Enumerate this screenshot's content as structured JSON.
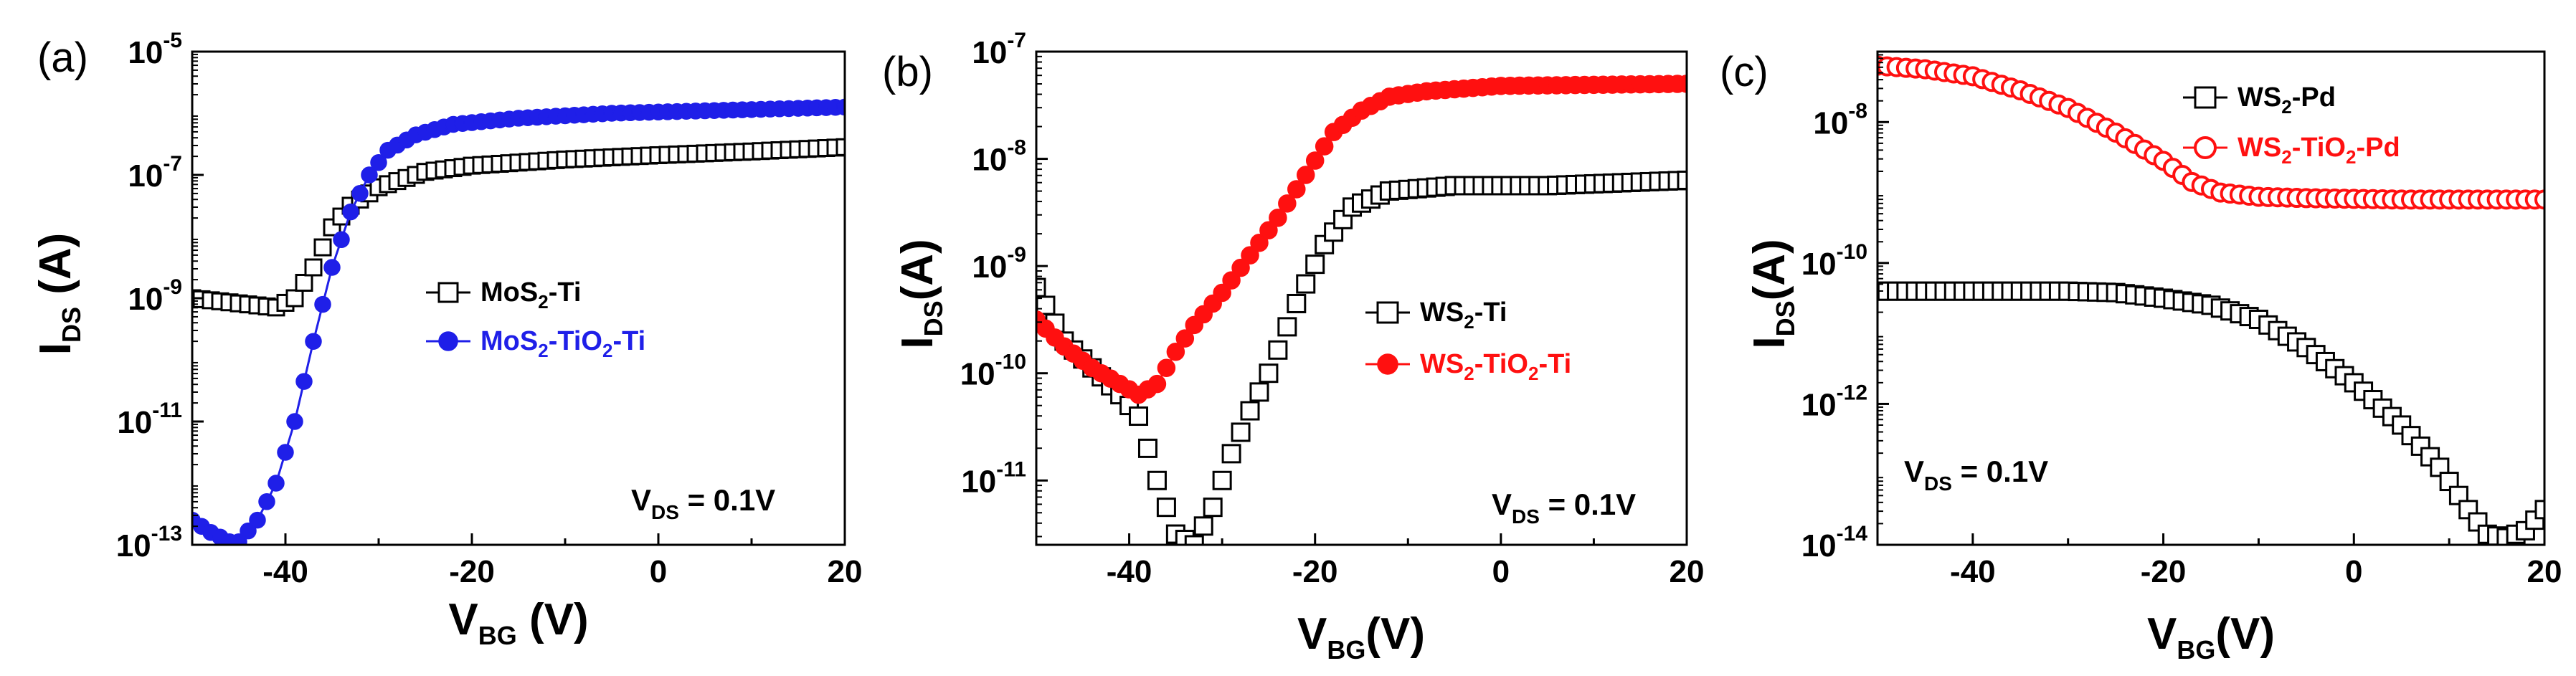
{
  "figure_title": "Transfer characteristics I_DS vs V_BG",
  "chart_data": [
    {
      "type": "scatter",
      "panel_label": "(a)",
      "xlabel": {
        "main": "V",
        "sub": "BG",
        "rest": " (V)"
      },
      "ylabel": {
        "main": "I",
        "sub": "DS",
        "rest": " (A)"
      },
      "xlim": [
        -50,
        20
      ],
      "ylim_log10": [
        -13,
        -5
      ],
      "x_ticks": [
        -40,
        -20,
        0,
        20
      ],
      "x_tick_labels": [
        "-40",
        "-20",
        "0",
        "20"
      ],
      "y_ticks_log10": [
        -13,
        -11,
        -9,
        -7,
        -5
      ],
      "y_tick_labels": [
        {
          "base": "10",
          "exp": "-13"
        },
        {
          "base": "10",
          "exp": "-11"
        },
        {
          "base": "10",
          "exp": "-9"
        },
        {
          "base": "10",
          "exp": "-7"
        },
        {
          "base": "10",
          "exp": "-5"
        }
      ],
      "annotation": {
        "main": "V",
        "sub": "DS",
        "rest": " = 0.1V"
      },
      "series": [
        {
          "name": "MoS2-Ti",
          "legend": [
            {
              "t": "MoS"
            },
            {
              "t": "2",
              "s": 1
            },
            {
              "t": "-Ti"
            }
          ],
          "marker": "open-square",
          "color": "#000000",
          "points": [
            [
              -50,
              -9
            ],
            [
              -47,
              -9.05
            ],
            [
              -44,
              -9.1
            ],
            [
              -41,
              -9.15
            ],
            [
              -39,
              -9
            ],
            [
              -37,
              -8.5
            ],
            [
              -35,
              -7.85
            ],
            [
              -33,
              -7.5
            ],
            [
              -30,
              -7.2
            ],
            [
              -25,
              -6.95
            ],
            [
              -20,
              -6.85
            ],
            [
              -10,
              -6.75
            ],
            [
              0,
              -6.68
            ],
            [
              10,
              -6.62
            ],
            [
              20,
              -6.55
            ]
          ]
        },
        {
          "name": "MoS2-TiO2-Ti",
          "legend": [
            {
              "t": "MoS"
            },
            {
              "t": "2",
              "s": 1
            },
            {
              "t": "-TiO"
            },
            {
              "t": "2",
              "s": 1
            },
            {
              "t": "-Ti"
            }
          ],
          "marker": "filled-circle",
          "color": "#1f1fe8",
          "points": [
            [
              -50,
              -12.6
            ],
            [
              -48,
              -12.8
            ],
            [
              -46,
              -12.95
            ],
            [
              -45,
              -12.95
            ],
            [
              -43,
              -12.6
            ],
            [
              -41,
              -12
            ],
            [
              -39,
              -11
            ],
            [
              -37,
              -9.7
            ],
            [
              -35,
              -8.5
            ],
            [
              -33,
              -7.6
            ],
            [
              -31,
              -7
            ],
            [
              -29,
              -6.6
            ],
            [
              -26,
              -6.35
            ],
            [
              -22,
              -6.18
            ],
            [
              -15,
              -6.08
            ],
            [
              -5,
              -6.0
            ],
            [
              5,
              -5.96
            ],
            [
              20,
              -5.9
            ]
          ]
        }
      ]
    },
    {
      "type": "scatter",
      "panel_label": "(b)",
      "xlabel": {
        "main": "V",
        "sub": "BG",
        "rest": "(V)"
      },
      "ylabel": {
        "main": "I",
        "sub": "DS",
        "rest": "(A)"
      },
      "xlim": [
        -50,
        20
      ],
      "ylim_log10": [
        -11.6,
        -7
      ],
      "x_ticks": [
        -40,
        -20,
        0,
        20
      ],
      "x_tick_labels": [
        "-40",
        "-20",
        "0",
        "20"
      ],
      "y_ticks_log10": [
        -11,
        -10,
        -9,
        -8,
        -7
      ],
      "y_tick_labels": [
        {
          "base": "10",
          "exp": "-11"
        },
        {
          "base": "10",
          "exp": "-10"
        },
        {
          "base": "10",
          "exp": "-9"
        },
        {
          "base": "10",
          "exp": "-8"
        },
        {
          "base": "10",
          "exp": "-7"
        }
      ],
      "annotation": {
        "main": "V",
        "sub": "DS",
        "rest": " = 0.1V"
      },
      "series": [
        {
          "name": "WS2-Ti",
          "legend": [
            {
              "t": "WS"
            },
            {
              "t": "2",
              "s": 1
            },
            {
              "t": "-Ti"
            }
          ],
          "marker": "open-square",
          "color": "#000000",
          "points": [
            [
              -50,
              -9.2
            ],
            [
              -47,
              -9.7
            ],
            [
              -44,
              -9.95
            ],
            [
              -41,
              -10.2
            ],
            [
              -39,
              -10.4
            ],
            [
              -37,
              -11.0
            ],
            [
              -35,
              -11.5
            ],
            [
              -33,
              -11.6
            ],
            [
              -31,
              -11.25
            ],
            [
              -29,
              -10.75
            ],
            [
              -27,
              -10.35
            ],
            [
              -25,
              -10.0
            ],
            [
              -22,
              -9.35
            ],
            [
              -19,
              -8.8
            ],
            [
              -16,
              -8.45
            ],
            [
              -12,
              -8.3
            ],
            [
              -5,
              -8.25
            ],
            [
              5,
              -8.25
            ],
            [
              20,
              -8.2
            ]
          ]
        },
        {
          "name": "WS2-TiO2-Ti",
          "legend": [
            {
              "t": "WS"
            },
            {
              "t": "2",
              "s": 1
            },
            {
              "t": "-TiO"
            },
            {
              "t": "2",
              "s": 1
            },
            {
              "t": "-Ti"
            }
          ],
          "marker": "filled-circle",
          "color": "#ff1010",
          "points": [
            [
              -50,
              -9.5
            ],
            [
              -47,
              -9.75
            ],
            [
              -44,
              -9.95
            ],
            [
              -41,
              -10.1
            ],
            [
              -39,
              -10.2
            ],
            [
              -37,
              -10.1
            ],
            [
              -35,
              -9.8
            ],
            [
              -33,
              -9.55
            ],
            [
              -30,
              -9.25
            ],
            [
              -27,
              -8.9
            ],
            [
              -24,
              -8.55
            ],
            [
              -21,
              -8.15
            ],
            [
              -18,
              -7.75
            ],
            [
              -15,
              -7.55
            ],
            [
              -12,
              -7.42
            ],
            [
              -8,
              -7.37
            ],
            [
              0,
              -7.32
            ],
            [
              10,
              -7.31
            ],
            [
              20,
              -7.3
            ]
          ]
        }
      ]
    },
    {
      "type": "scatter",
      "panel_label": "(c)",
      "xlabel": {
        "main": "V",
        "sub": "BG",
        "rest": "(V)"
      },
      "ylabel": {
        "main": "I",
        "sub": "DS",
        "rest": "(A)"
      },
      "xlim": [
        -50,
        20
      ],
      "ylim_log10": [
        -14,
        -7
      ],
      "x_ticks": [
        -40,
        -20,
        0,
        20
      ],
      "x_tick_labels": [
        "-40",
        "-20",
        "0",
        "20"
      ],
      "y_ticks_log10": [
        -14,
        -12,
        -10,
        -8
      ],
      "y_tick_labels": [
        {
          "base": "10",
          "exp": "-14"
        },
        {
          "base": "10",
          "exp": "-12"
        },
        {
          "base": "10",
          "exp": "-10"
        },
        {
          "base": "10",
          "exp": "-8"
        }
      ],
      "annotation": {
        "main": "V",
        "sub": "DS",
        "rest": " = 0.1V"
      },
      "series": [
        {
          "name": "WS2-Pd",
          "legend": [
            {
              "t": "WS"
            },
            {
              "t": "2",
              "s": 1
            },
            {
              "t": "-Pd"
            }
          ],
          "marker": "open-square",
          "color": "#000000",
          "points": [
            [
              -50,
              -10.4
            ],
            [
              -45,
              -10.4
            ],
            [
              -40,
              -10.4
            ],
            [
              -35,
              -10.4
            ],
            [
              -30,
              -10.4
            ],
            [
              -25,
              -10.42
            ],
            [
              -20,
              -10.5
            ],
            [
              -15,
              -10.6
            ],
            [
              -10,
              -10.8
            ],
            [
              -5,
              -11.2
            ],
            [
              0,
              -11.7
            ],
            [
              5,
              -12.3
            ],
            [
              9,
              -12.9
            ],
            [
              12,
              -13.5
            ],
            [
              14,
              -13.85
            ],
            [
              16,
              -13.9
            ],
            [
              18,
              -13.8
            ],
            [
              20,
              -13.5
            ]
          ]
        },
        {
          "name": "WS2-TiO2-Pd",
          "legend": [
            {
              "t": "WS"
            },
            {
              "t": "2",
              "s": 1
            },
            {
              "t": "-TiO"
            },
            {
              "t": "2",
              "s": 1
            },
            {
              "t": "-Pd"
            }
          ],
          "marker": "open-circle",
          "color": "#ff1010",
          "points": [
            [
              -50,
              -7.2
            ],
            [
              -45,
              -7.25
            ],
            [
              -40,
              -7.35
            ],
            [
              -35,
              -7.55
            ],
            [
              -30,
              -7.8
            ],
            [
              -25,
              -8.15
            ],
            [
              -20,
              -8.55
            ],
            [
              -17,
              -8.85
            ],
            [
              -14,
              -9.0
            ],
            [
              -10,
              -9.06
            ],
            [
              -5,
              -9.08
            ],
            [
              5,
              -9.1
            ],
            [
              20,
              -9.1
            ]
          ]
        }
      ]
    }
  ]
}
